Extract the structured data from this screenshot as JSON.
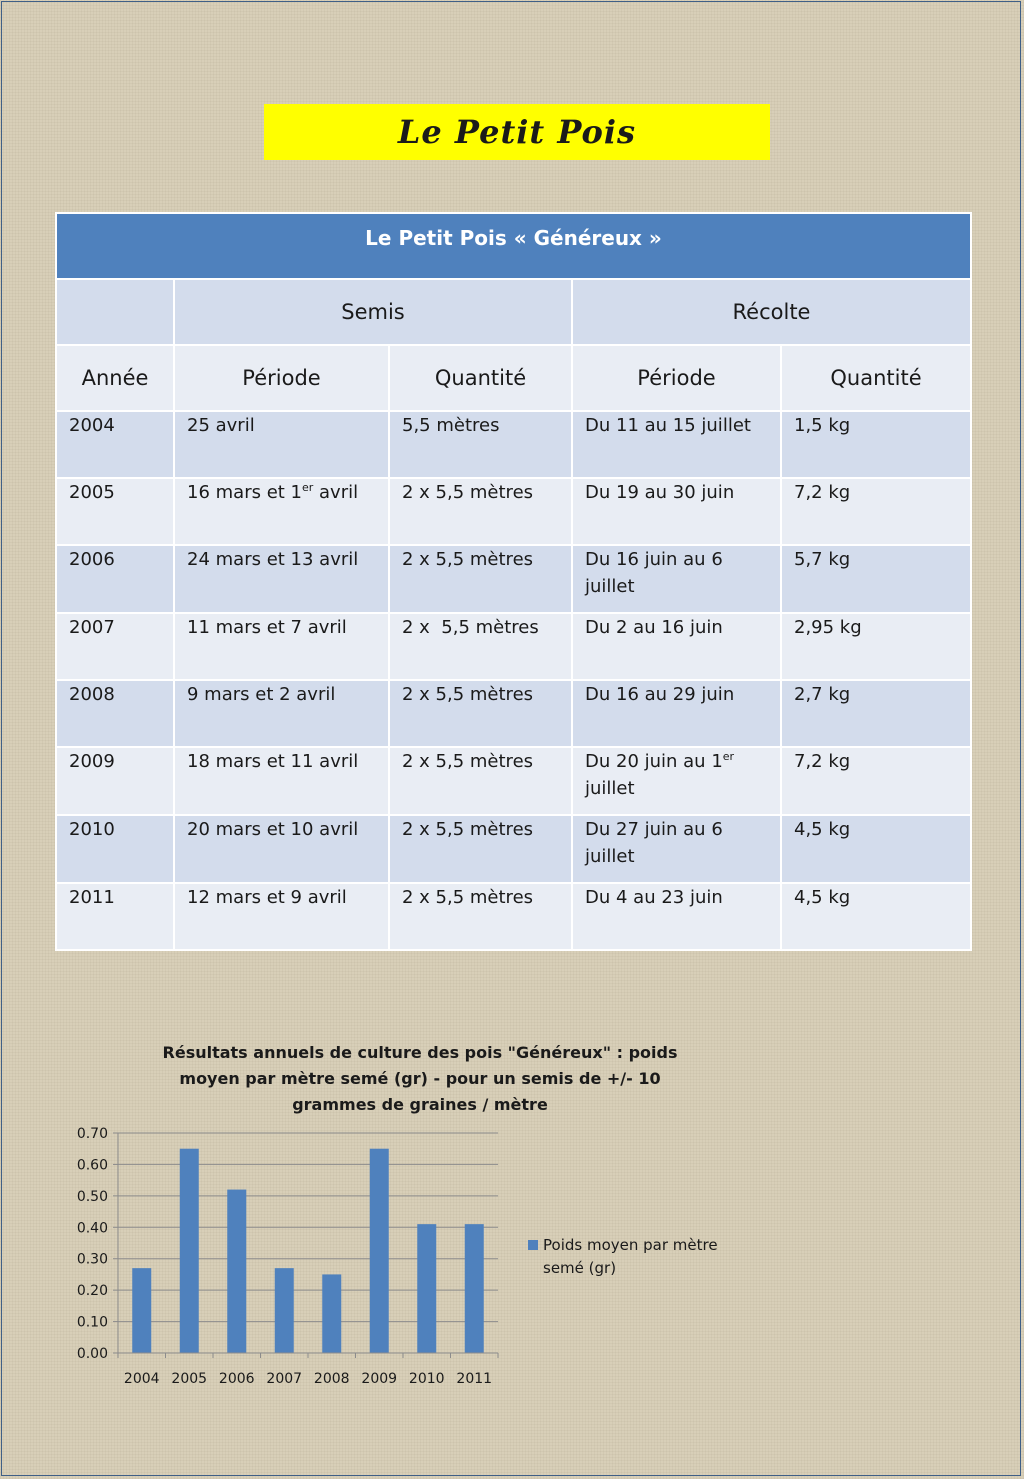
{
  "page": {
    "title": "Le Petit Pois"
  },
  "table": {
    "caption": "Le Petit Pois « Généreux »",
    "group_headers": [
      "Semis",
      "Récolte"
    ],
    "column_headers": [
      "Année",
      "Période",
      "Quantité",
      "Période",
      "Quantité"
    ],
    "rows": [
      {
        "year": "2004",
        "sow_period": "25 avril",
        "sow_qty": "5,5 mètres",
        "harvest_period": "Du 11 au 15 juillet",
        "harvest_qty": "1,5 kg"
      },
      {
        "year": "2005",
        "sow_period_a": "16 mars et 1",
        "sow_period_sup": "er",
        "sow_period_b": " avril",
        "sow_qty": "2 x 5,5 mètres",
        "harvest_period": "Du 19 au 30 juin",
        "harvest_qty": "7,2 kg"
      },
      {
        "year": "2006",
        "sow_period": "24 mars et 13 avril",
        "sow_qty": "2 x 5,5 mètres",
        "harvest_period": "Du 16 juin au 6 juillet",
        "harvest_qty": "5,7 kg"
      },
      {
        "year": "2007",
        "sow_period": "11 mars et 7 avril",
        "sow_qty": "2 x  5,5 mètres",
        "harvest_period": "Du 2 au 16 juin",
        "harvest_qty": "2,95 kg"
      },
      {
        "year": "2008",
        "sow_period": "9 mars et 2 avril",
        "sow_qty": "2 x 5,5 mètres",
        "harvest_period": "Du 16 au 29 juin",
        "harvest_qty": "2,7 kg"
      },
      {
        "year": "2009",
        "sow_period": "18 mars et 11 avril",
        "sow_qty": "2 x 5,5 mètres",
        "harvest_period_a": "Du 20 juin au 1",
        "harvest_period_sup": "er",
        "harvest_period_b": "juillet",
        "harvest_qty": "7,2 kg"
      },
      {
        "year": "2010",
        "sow_period": "20 mars et 10 avril",
        "sow_qty": "2 x 5,5 mètres",
        "harvest_period": "Du 27 juin au 6 juillet",
        "harvest_qty": "4,5 kg"
      },
      {
        "year": "2011",
        "sow_period": "12 mars et 9 avril",
        "sow_qty": "2 x 5,5 mètres",
        "harvest_period": "Du 4 au 23 juin",
        "harvest_qty": "4,5 kg"
      }
    ]
  },
  "chart_data": {
    "type": "bar",
    "title": "Résultats annuels de culture des pois \"Généreux\" : poids moyen par mètre semé (gr) - pour un semis de +/- 10 grammes de graines  / mètre",
    "categories": [
      "2004",
      "2005",
      "2006",
      "2007",
      "2008",
      "2009",
      "2010",
      "2011"
    ],
    "series": [
      {
        "name": "Poids moyen par mètre semé (gr)",
        "values": [
          0.27,
          0.65,
          0.52,
          0.27,
          0.25,
          0.65,
          0.41,
          0.41
        ],
        "color": "#4f81bd"
      }
    ],
    "ylim": [
      0,
      0.7
    ],
    "yticks": [
      "0.00",
      "0.10",
      "0.20",
      "0.30",
      "0.40",
      "0.50",
      "0.60",
      "0.70"
    ],
    "grid": true,
    "legend_position": "right"
  }
}
